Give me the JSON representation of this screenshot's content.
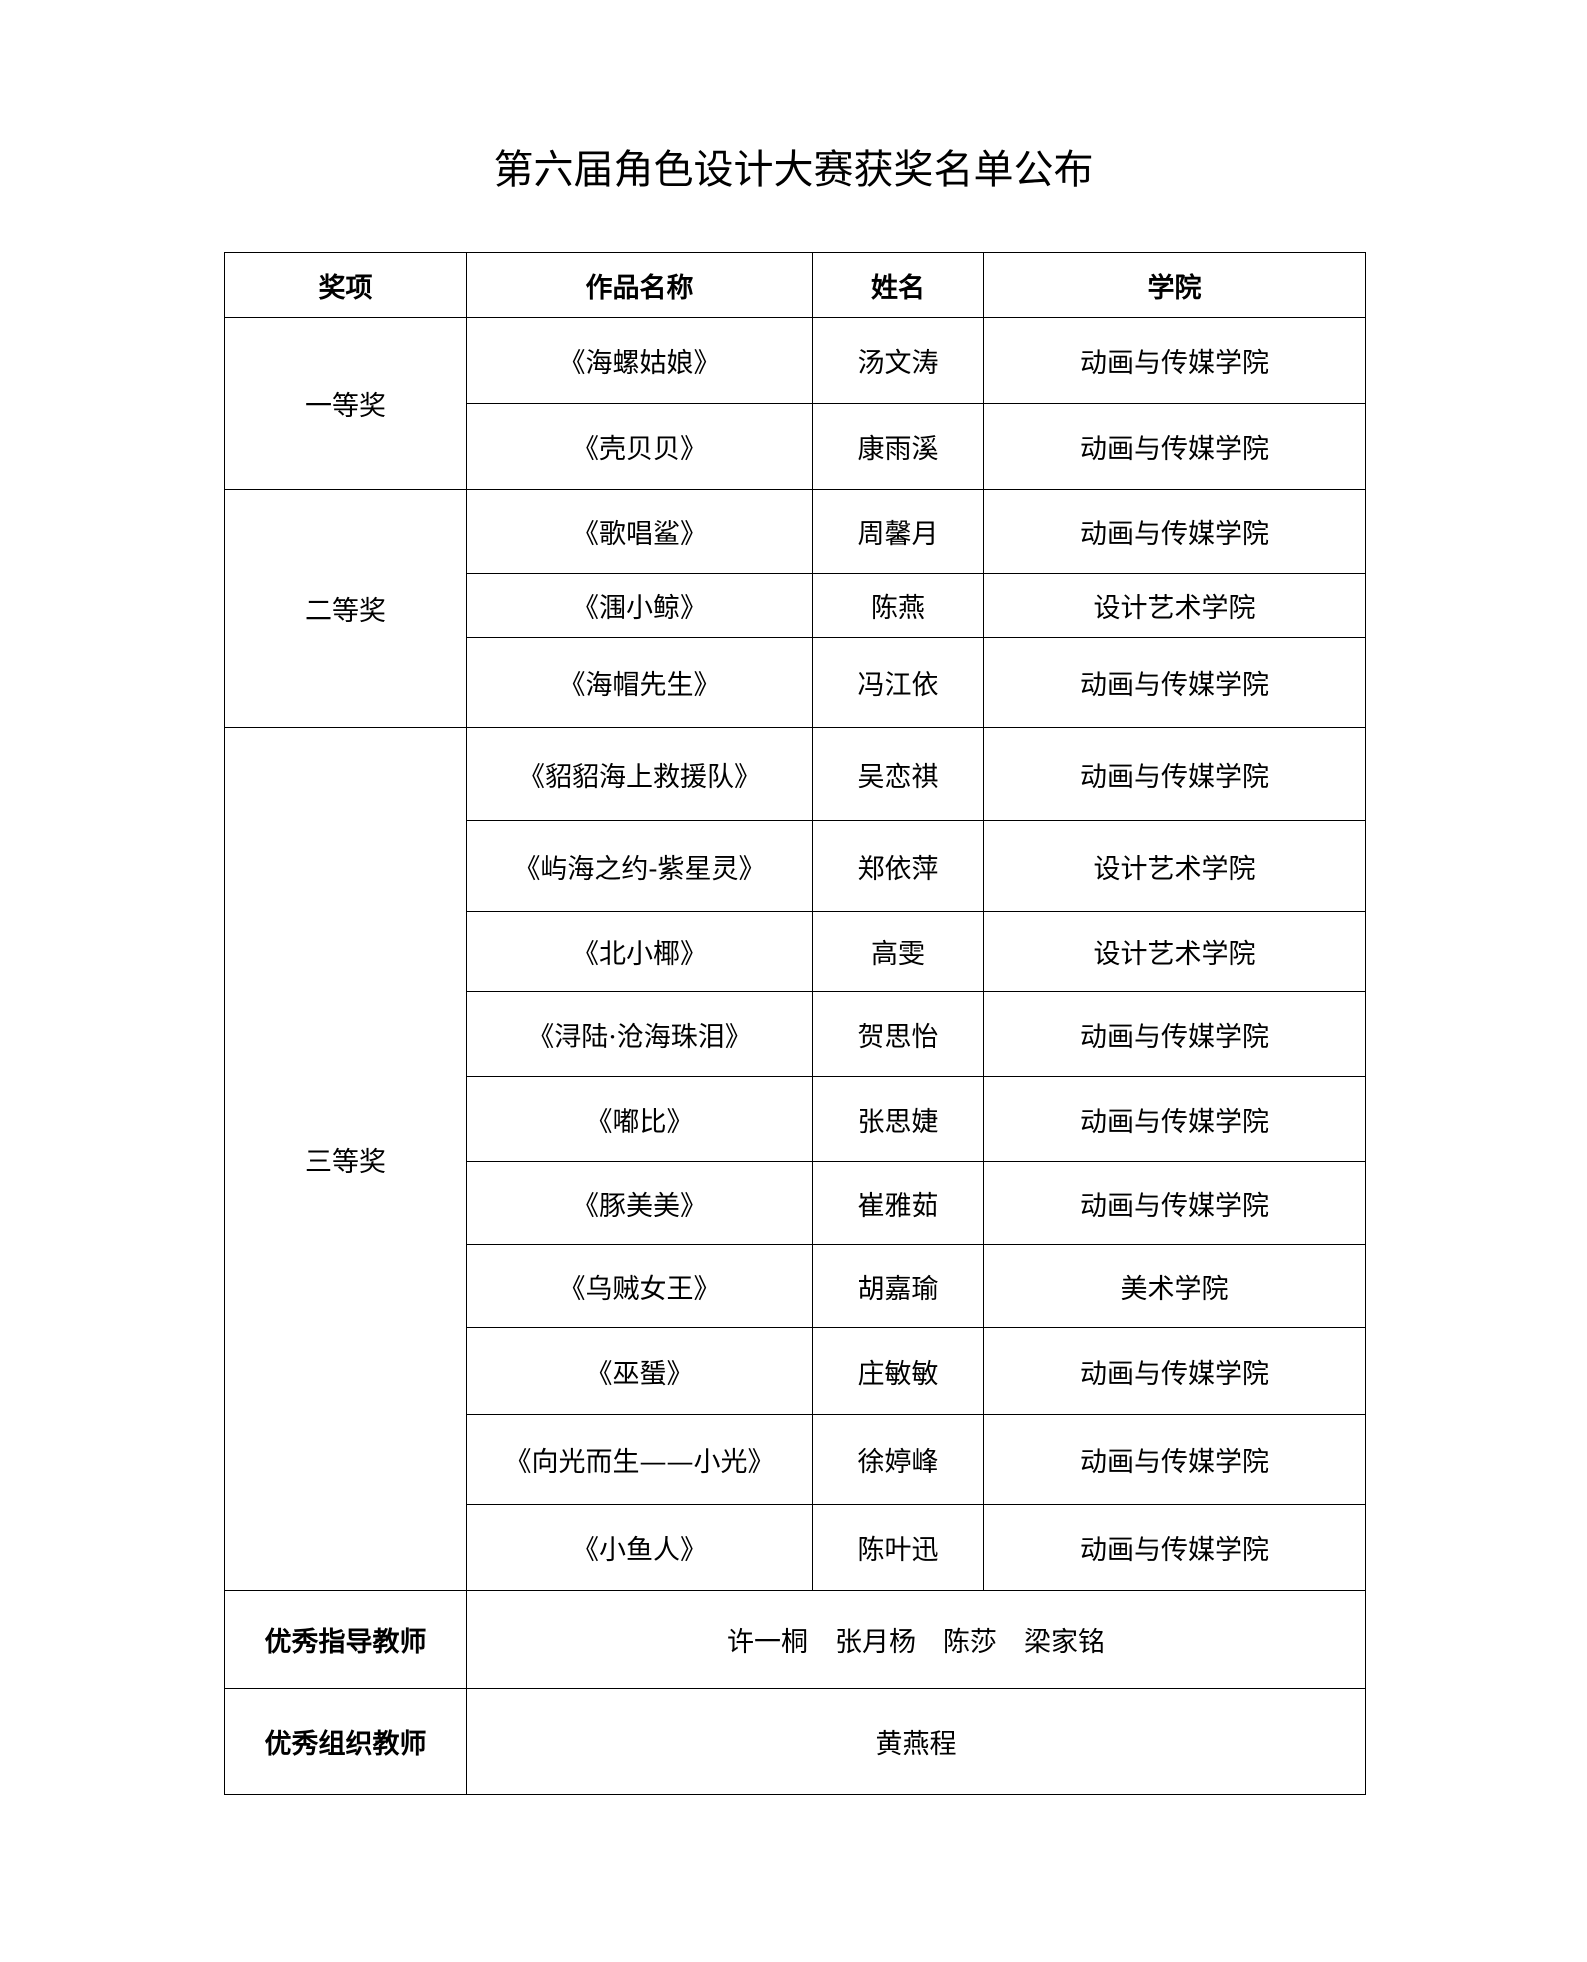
{
  "title": "第六届角色设计大赛获奖名单公布",
  "headers": [
    "奖项",
    "作品名称",
    "姓名",
    "学院"
  ],
  "groups": [
    {
      "award": "一等奖",
      "rows": [
        {
          "work": "《海螺姑娘》",
          "name": "汤文涛",
          "college": "动画与传媒学院"
        },
        {
          "work": "《壳贝贝》",
          "name": "康雨溪",
          "college": "动画与传媒学院"
        }
      ]
    },
    {
      "award": "二等奖",
      "rows": [
        {
          "work": "《歌唱鲨》",
          "name": "周馨月",
          "college": "动画与传媒学院"
        },
        {
          "work": "《涠小鲸》",
          "name": "陈燕",
          "college": "设计艺术学院"
        },
        {
          "work": "《海帽先生》",
          "name": "冯江依",
          "college": "动画与传媒学院"
        }
      ]
    },
    {
      "award": "三等奖",
      "rows": [
        {
          "work": "《貂貂海上救援队》",
          "name": "吴恋祺",
          "college": "动画与传媒学院"
        },
        {
          "work": "《屿海之约-紫星灵》",
          "name": "郑依萍",
          "college": "设计艺术学院"
        },
        {
          "work": "《北小椰》",
          "name": "高雯",
          "college": "设计艺术学院"
        },
        {
          "work": "《浔陆·沧海珠泪》",
          "name": "贺思怡",
          "college": "动画与传媒学院"
        },
        {
          "work": "《嘟比》",
          "name": "张思婕",
          "college": "动画与传媒学院"
        },
        {
          "work": "《豚美美》",
          "name": "崔雅茹",
          "college": "动画与传媒学院"
        },
        {
          "work": "《乌贼女王》",
          "name": "胡嘉瑜",
          "college": "美术学院"
        },
        {
          "work": "《巫蜑》",
          "name": "庄敏敏",
          "college": "动画与传媒学院"
        },
        {
          "work": "《向光而生——小光》",
          "name": "徐婷峰",
          "college": "动画与传媒学院"
        },
        {
          "work": "《小鱼人》",
          "name": "陈叶迅",
          "college": "动画与传媒学院"
        }
      ]
    }
  ],
  "mentor": {
    "label": "优秀指导教师",
    "value": "许一桐　张月杨　陈莎　梁家铭"
  },
  "organizer": {
    "label": "优秀组织教师",
    "value": "黄燕程"
  }
}
